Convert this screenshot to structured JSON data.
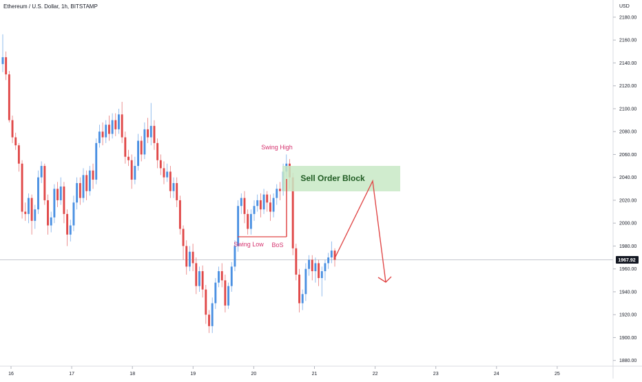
{
  "header": {
    "title": "Ethereum / U.S. Dollar, 1h, BITSTAMP",
    "currency": "USD"
  },
  "chart_data": {
    "type": "candlestick",
    "symbol": "Ethereum / U.S. Dollar",
    "interval": "1h",
    "exchange": "BITSTAMP",
    "y_unit": "USD",
    "ylim": [
      1875,
      2195
    ],
    "yticks": [
      "2180.00",
      "2160.00",
      "2140.00",
      "2120.00",
      "2100.00",
      "2080.00",
      "2060.00",
      "2040.00",
      "2020.00",
      "2000.00",
      "1980.00",
      "1960.00",
      "1940.00",
      "1920.00",
      "1900.00",
      "1880.00"
    ],
    "xlim": [
      16.0,
      26.0
    ],
    "xticks": [
      {
        "label": "16",
        "value": 16
      },
      {
        "label": "17",
        "value": 17
      },
      {
        "label": "18",
        "value": 18
      },
      {
        "label": "19",
        "value": 19
      },
      {
        "label": "20",
        "value": 20
      },
      {
        "label": "21",
        "value": 21
      },
      {
        "label": "22",
        "value": 22
      },
      {
        "label": "23",
        "value": 23
      },
      {
        "label": "24",
        "value": 24
      },
      {
        "label": "25",
        "value": 25
      }
    ],
    "last_price": "1967.92",
    "up_color": "#4a90e2",
    "down_color": "#e04848",
    "candles": [
      [
        2139,
        2145,
        2132,
        2165
      ],
      [
        2145,
        2130,
        2125,
        2150
      ],
      [
        2130,
        2090,
        2088,
        2133
      ],
      [
        2090,
        2075,
        2070,
        2094
      ],
      [
        2075,
        2068,
        2064,
        2079
      ],
      [
        2068,
        2052,
        2045,
        2070
      ],
      [
        2052,
        2010,
        2004,
        2055
      ],
      [
        2010,
        2008,
        2002,
        2018
      ],
      [
        2008,
        2022,
        2000,
        2026
      ],
      [
        2022,
        2002,
        1990,
        2025
      ],
      [
        2002,
        2012,
        1995,
        2016
      ],
      [
        2012,
        2040,
        2008,
        2046
      ],
      [
        2040,
        2050,
        2035,
        2054
      ],
      [
        2050,
        2020,
        2016,
        2052
      ],
      [
        2020,
        1998,
        1990,
        2025
      ],
      [
        1998,
        2005,
        1992,
        2010
      ],
      [
        2005,
        2030,
        2000,
        2034
      ],
      [
        2030,
        2020,
        2014,
        2036
      ],
      [
        2020,
        2032,
        2016,
        2040
      ],
      [
        2032,
        2008,
        2000,
        2036
      ],
      [
        2008,
        1990,
        1980,
        2012
      ],
      [
        1990,
        1998,
        1984,
        2003
      ],
      [
        1998,
        2018,
        1993,
        2024
      ],
      [
        2018,
        2035,
        2012,
        2040
      ],
      [
        2035,
        2022,
        2016,
        2040
      ],
      [
        2022,
        2042,
        2018,
        2048
      ],
      [
        2042,
        2028,
        2020,
        2046
      ],
      [
        2028,
        2046,
        2024,
        2050
      ],
      [
        2046,
        2038,
        2030,
        2052
      ],
      [
        2038,
        2070,
        2034,
        2074
      ],
      [
        2070,
        2080,
        2066,
        2086
      ],
      [
        2080,
        2075,
        2068,
        2088
      ],
      [
        2075,
        2086,
        2070,
        2090
      ],
      [
        2086,
        2078,
        2072,
        2094
      ],
      [
        2078,
        2090,
        2074,
        2096
      ],
      [
        2090,
        2082,
        2076,
        2096
      ],
      [
        2082,
        2095,
        2078,
        2100
      ],
      [
        2095,
        2075,
        2070,
        2106
      ],
      [
        2075,
        2058,
        2052,
        2080
      ],
      [
        2058,
        2055,
        2050,
        2064
      ],
      [
        2055,
        2038,
        2030,
        2060
      ],
      [
        2038,
        2050,
        2034,
        2058
      ],
      [
        2050,
        2072,
        2046,
        2078
      ],
      [
        2072,
        2060,
        2054,
        2076
      ],
      [
        2060,
        2082,
        2056,
        2088
      ],
      [
        2082,
        2075,
        2070,
        2092
      ],
      [
        2075,
        2085,
        2068,
        2105
      ],
      [
        2085,
        2070,
        2064,
        2090
      ],
      [
        2070,
        2055,
        2048,
        2074
      ],
      [
        2055,
        2048,
        2042,
        2060
      ],
      [
        2048,
        2040,
        2034,
        2054
      ],
      [
        2040,
        2045,
        2036,
        2052
      ],
      [
        2045,
        2028,
        2022,
        2050
      ],
      [
        2028,
        2035,
        2022,
        2040
      ],
      [
        2035,
        2020,
        2014,
        2040
      ],
      [
        2020,
        1995,
        1990,
        2024
      ],
      [
        1995,
        1980,
        1968,
        1998
      ],
      [
        1980,
        1962,
        1955,
        1985
      ],
      [
        1962,
        1975,
        1958,
        1980
      ],
      [
        1975,
        1965,
        1958,
        1982
      ],
      [
        1965,
        1945,
        1938,
        1970
      ],
      [
        1945,
        1958,
        1940,
        1962
      ],
      [
        1958,
        1942,
        1935,
        1963
      ],
      [
        1942,
        1920,
        1912,
        1946
      ],
      [
        1920,
        1910,
        1904,
        1924
      ],
      [
        1910,
        1930,
        1904,
        1935
      ],
      [
        1930,
        1948,
        1925,
        1952
      ],
      [
        1948,
        1958,
        1944,
        1962
      ],
      [
        1958,
        1950,
        1944,
        1965
      ],
      [
        1950,
        1928,
        1922,
        1955
      ],
      [
        1928,
        1945,
        1925,
        1948
      ],
      [
        1945,
        1962,
        1940,
        1966
      ],
      [
        1962,
        1980,
        1958,
        1985
      ],
      [
        1980,
        2015,
        1975,
        2020
      ],
      [
        2015,
        2022,
        2008,
        2026
      ],
      [
        2022,
        2008,
        2000,
        2028
      ],
      [
        2008,
        1995,
        1990,
        2012
      ],
      [
        1995,
        2008,
        1990,
        2012
      ],
      [
        2008,
        2015,
        2002,
        2020
      ],
      [
        2015,
        2020,
        2010,
        2025
      ],
      [
        2020,
        2012,
        2005,
        2026
      ],
      [
        2012,
        2025,
        2008,
        2030
      ],
      [
        2025,
        2018,
        2010,
        2028
      ],
      [
        2018,
        2010,
        2002,
        2025
      ],
      [
        2010,
        2022,
        2005,
        2026
      ],
      [
        2022,
        2030,
        2016,
        2034
      ],
      [
        2030,
        2028,
        2020,
        2036
      ],
      [
        2028,
        2045,
        2024,
        2052
      ],
      [
        2045,
        2052,
        2040,
        2060
      ],
      [
        2052,
        2040,
        2030,
        2056
      ],
      [
        2040,
        1978,
        1972,
        2044
      ],
      [
        1978,
        1955,
        1950,
        1982
      ],
      [
        1955,
        1930,
        1922,
        1960
      ],
      [
        1930,
        1938,
        1924,
        1942
      ],
      [
        1938,
        1960,
        1932,
        1965
      ],
      [
        1960,
        1968,
        1954,
        1972
      ],
      [
        1968,
        1958,
        1950,
        1972
      ],
      [
        1958,
        1965,
        1948,
        1970
      ],
      [
        1965,
        1952,
        1945,
        1968
      ],
      [
        1952,
        1958,
        1936,
        1962
      ],
      [
        1958,
        1965,
        1950,
        1968
      ],
      [
        1965,
        1970,
        1960,
        1974
      ],
      [
        1970,
        1976,
        1965,
        1984
      ],
      [
        1976,
        1968,
        1962,
        1978
      ]
    ],
    "annotations": {
      "swing_high": "Swing High",
      "swing_low": "Swing Low",
      "bos": "BoS",
      "order_block": "Sell Order Block"
    }
  }
}
